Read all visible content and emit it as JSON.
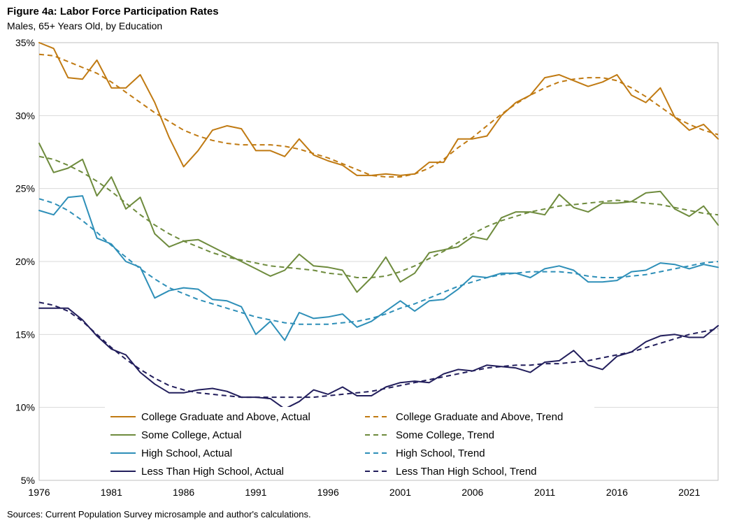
{
  "chart_data": {
    "type": "line",
    "title": "Figure 4a: Labor Force Participation Rates",
    "subtitle": "Males, 65+ Years Old, by Education",
    "source": "Sources: Current Population Survey microsample and author's calculations.",
    "xlim": [
      1976,
      2023
    ],
    "ylim": [
      5,
      35
    ],
    "xticks": [
      1976,
      1981,
      1986,
      1991,
      1996,
      2001,
      2006,
      2011,
      2016,
      2021
    ],
    "yticks": [
      5,
      10,
      15,
      20,
      25,
      30,
      35
    ],
    "ytick_labels": [
      "5%",
      "10%",
      "15%",
      "20%",
      "25%",
      "30%",
      "35%"
    ],
    "grid": "horizontal",
    "legend_position": "bottom-inside",
    "x": [
      1976,
      1977,
      1978,
      1979,
      1980,
      1981,
      1982,
      1983,
      1984,
      1985,
      1986,
      1987,
      1988,
      1989,
      1990,
      1991,
      1992,
      1993,
      1994,
      1995,
      1996,
      1997,
      1998,
      1999,
      2000,
      2001,
      2002,
      2003,
      2004,
      2005,
      2006,
      2007,
      2008,
      2009,
      2010,
      2011,
      2012,
      2013,
      2014,
      2015,
      2016,
      2017,
      2018,
      2019,
      2020,
      2021,
      2022,
      2023
    ],
    "series": [
      {
        "name": "College Graduate and Above, Actual",
        "color": "#C07A12",
        "dash": "solid",
        "values": [
          35.0,
          34.6,
          32.6,
          32.5,
          33.8,
          31.9,
          31.9,
          32.8,
          30.9,
          28.5,
          26.5,
          27.6,
          29.0,
          29.3,
          29.1,
          27.6,
          27.6,
          27.2,
          28.4,
          27.3,
          26.9,
          26.6,
          25.9,
          25.9,
          26.0,
          25.9,
          26.0,
          26.8,
          26.8,
          28.4,
          28.4,
          28.6,
          30.0,
          30.9,
          31.4,
          32.6,
          32.8,
          32.4,
          32.0,
          32.3,
          32.8,
          31.4,
          30.9,
          31.9,
          29.9,
          29.0,
          29.4,
          28.4
        ]
      },
      {
        "name": "College Graduate and Above, Trend",
        "color": "#C07A12",
        "dash": "dashed",
        "values": [
          34.2,
          34.1,
          33.7,
          33.3,
          32.9,
          32.3,
          31.6,
          30.9,
          30.2,
          29.6,
          29.0,
          28.6,
          28.3,
          28.1,
          28.0,
          28.0,
          28.0,
          27.9,
          27.7,
          27.4,
          27.1,
          26.7,
          26.3,
          25.9,
          25.8,
          25.8,
          26.0,
          26.4,
          27.0,
          27.8,
          28.5,
          29.3,
          30.1,
          30.8,
          31.4,
          31.9,
          32.3,
          32.5,
          32.6,
          32.6,
          32.4,
          31.9,
          31.3,
          30.6,
          29.9,
          29.4,
          29.0,
          28.7
        ]
      },
      {
        "name": "Some College, Actual",
        "color": "#6E8B3D",
        "dash": "solid",
        "values": [
          28.1,
          26.1,
          26.4,
          27.0,
          24.5,
          25.8,
          23.6,
          24.4,
          21.9,
          21.0,
          21.4,
          21.5,
          21.0,
          20.5,
          20.0,
          19.5,
          19.0,
          19.4,
          20.5,
          19.7,
          19.6,
          19.4,
          17.9,
          18.9,
          20.3,
          18.6,
          19.2,
          20.6,
          20.8,
          21.0,
          21.7,
          21.5,
          23.0,
          23.4,
          23.4,
          23.2,
          24.6,
          23.7,
          23.4,
          24.0,
          24.0,
          24.1,
          24.7,
          24.8,
          23.6,
          23.1,
          23.8,
          22.5
        ]
      },
      {
        "name": "Some College, Trend",
        "color": "#6E8B3D",
        "dash": "dashed",
        "values": [
          27.2,
          27.0,
          26.6,
          26.1,
          25.5,
          24.8,
          24.0,
          23.2,
          22.5,
          21.9,
          21.4,
          21.0,
          20.6,
          20.3,
          20.1,
          19.9,
          19.7,
          19.6,
          19.5,
          19.4,
          19.2,
          19.1,
          18.9,
          18.9,
          19.0,
          19.3,
          19.7,
          20.2,
          20.7,
          21.3,
          21.9,
          22.4,
          22.8,
          23.1,
          23.4,
          23.6,
          23.8,
          23.9,
          24.0,
          24.1,
          24.2,
          24.1,
          24.0,
          23.9,
          23.7,
          23.5,
          23.3,
          23.2
        ]
      },
      {
        "name": "High School, Actual",
        "color": "#2E8FB8",
        "dash": "solid",
        "values": [
          23.5,
          23.2,
          24.4,
          24.5,
          21.6,
          21.2,
          20.0,
          19.6,
          17.5,
          18.0,
          18.2,
          18.1,
          17.4,
          17.3,
          16.9,
          15.0,
          15.9,
          14.6,
          16.5,
          16.1,
          16.2,
          16.4,
          15.5,
          15.9,
          16.6,
          17.3,
          16.6,
          17.3,
          17.4,
          18.1,
          19.0,
          18.9,
          19.2,
          19.2,
          18.9,
          19.5,
          19.7,
          19.4,
          18.6,
          18.6,
          18.7,
          19.3,
          19.4,
          19.9,
          19.8,
          19.5,
          19.8,
          19.6
        ]
      },
      {
        "name": "High School, Trend",
        "color": "#2E8FB8",
        "dash": "dashed",
        "values": [
          24.3,
          24.0,
          23.5,
          22.8,
          22.0,
          21.1,
          20.3,
          19.5,
          18.8,
          18.2,
          17.8,
          17.4,
          17.1,
          16.8,
          16.5,
          16.2,
          16.0,
          15.8,
          15.7,
          15.7,
          15.7,
          15.8,
          15.9,
          16.1,
          16.4,
          16.8,
          17.1,
          17.5,
          17.9,
          18.3,
          18.6,
          18.9,
          19.1,
          19.2,
          19.3,
          19.3,
          19.3,
          19.2,
          19.0,
          18.9,
          18.9,
          19.0,
          19.1,
          19.3,
          19.5,
          19.7,
          19.9,
          20.0
        ]
      },
      {
        "name": "Less Than High School, Actual",
        "color": "#221E5C",
        "dash": "solid",
        "values": [
          16.8,
          16.8,
          16.8,
          16.0,
          14.9,
          14.0,
          13.6,
          12.4,
          11.6,
          11.0,
          11.0,
          11.2,
          11.3,
          11.1,
          10.7,
          10.7,
          10.6,
          9.9,
          10.4,
          11.2,
          10.9,
          11.4,
          10.8,
          10.8,
          11.4,
          11.7,
          11.8,
          11.7,
          12.3,
          12.6,
          12.5,
          12.9,
          12.8,
          12.7,
          12.4,
          13.1,
          13.2,
          13.9,
          12.9,
          12.6,
          13.5,
          13.8,
          14.5,
          14.9,
          15.0,
          14.8,
          14.8,
          15.6
        ]
      },
      {
        "name": "Less Than High School, Trend",
        "color": "#221E5C",
        "dash": "dashed",
        "values": [
          17.2,
          17.0,
          16.6,
          15.9,
          15.0,
          14.1,
          13.3,
          12.6,
          12.0,
          11.5,
          11.2,
          11.0,
          10.9,
          10.8,
          10.7,
          10.7,
          10.7,
          10.7,
          10.7,
          10.7,
          10.8,
          10.9,
          11.0,
          11.1,
          11.3,
          11.5,
          11.7,
          11.9,
          12.1,
          12.3,
          12.5,
          12.7,
          12.8,
          12.9,
          12.9,
          13.0,
          13.0,
          13.1,
          13.2,
          13.4,
          13.6,
          13.8,
          14.1,
          14.4,
          14.7,
          15.0,
          15.2,
          15.4
        ]
      }
    ],
    "legend_order": [
      0,
      1,
      2,
      3,
      4,
      5,
      6,
      7
    ]
  }
}
